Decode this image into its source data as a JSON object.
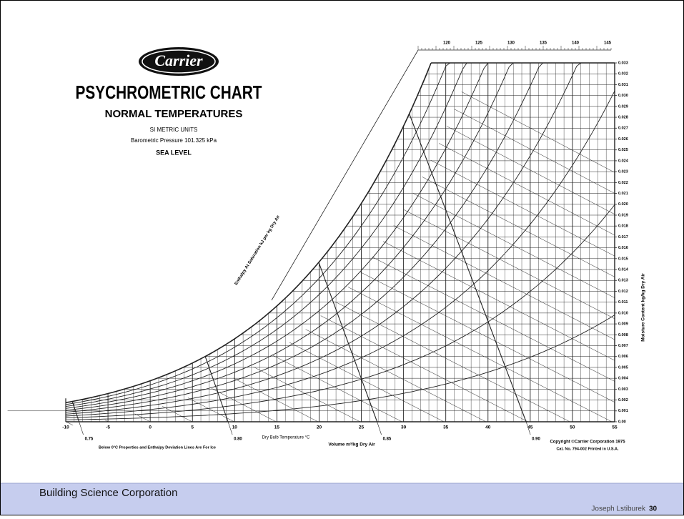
{
  "logo": "Carrier",
  "header": {
    "title": "PSYCHROMETRIC CHART",
    "subtitle": "NORMAL TEMPERATURES",
    "units": "SI METRIC UNITS",
    "pressure": "Barometric Pressure 101.325 kPa",
    "altitude": "SEA LEVEL"
  },
  "axes": {
    "dry_bulb_label": "Dry Bulb Temperature °C",
    "dry_bulb_ticks": [
      -10,
      -5,
      0,
      5,
      10,
      15,
      20,
      25,
      30,
      35,
      40,
      45,
      50,
      55
    ],
    "moisture_label": "Moisture Content kg/kg Dry Air",
    "moisture_ticks": [
      "0.00",
      "0.001",
      "0.002",
      "0.003",
      "0.004",
      "0.005",
      "0.006",
      "0.007",
      "0.008",
      "0.009",
      "0.010",
      "0.011",
      "0.012",
      "0.013",
      "0.014",
      "0.015",
      "0.016",
      "0.017",
      "0.018",
      "0.019",
      "0.020",
      "0.021",
      "0.022",
      "0.023",
      "0.024",
      "0.025",
      "0.026",
      "0.027",
      "0.028",
      "0.029",
      "0.030",
      "0.031",
      "0.032",
      "0.033"
    ],
    "enthalpy_label": "Enthalpy At Saturation kJ per kg Dry Air",
    "enthalpy_top_ticks": [
      120,
      125,
      130,
      135,
      140,
      145
    ],
    "volume_label": "Volume m³/kg Dry Air",
    "volume_ticks": [
      {
        "value": 0.75,
        "label": "0.75"
      },
      {
        "value": 0.8,
        "label": "0.80"
      },
      {
        "value": 0.85,
        "label": "0.85"
      },
      {
        "value": 0.9,
        "label": "0.90"
      }
    ]
  },
  "notes": {
    "ice": "Below 0°C Properties and Enthalpy Deviation Lines Are For Ice",
    "copyright": "Copyright ©Carrier Corporation 1975",
    "catalog": "Cat. No. 794-002    Printed in U.S.A."
  },
  "footer": {
    "organization": "Building Science Corporation",
    "author": "Joseph Lstiburek",
    "page": "30"
  }
}
